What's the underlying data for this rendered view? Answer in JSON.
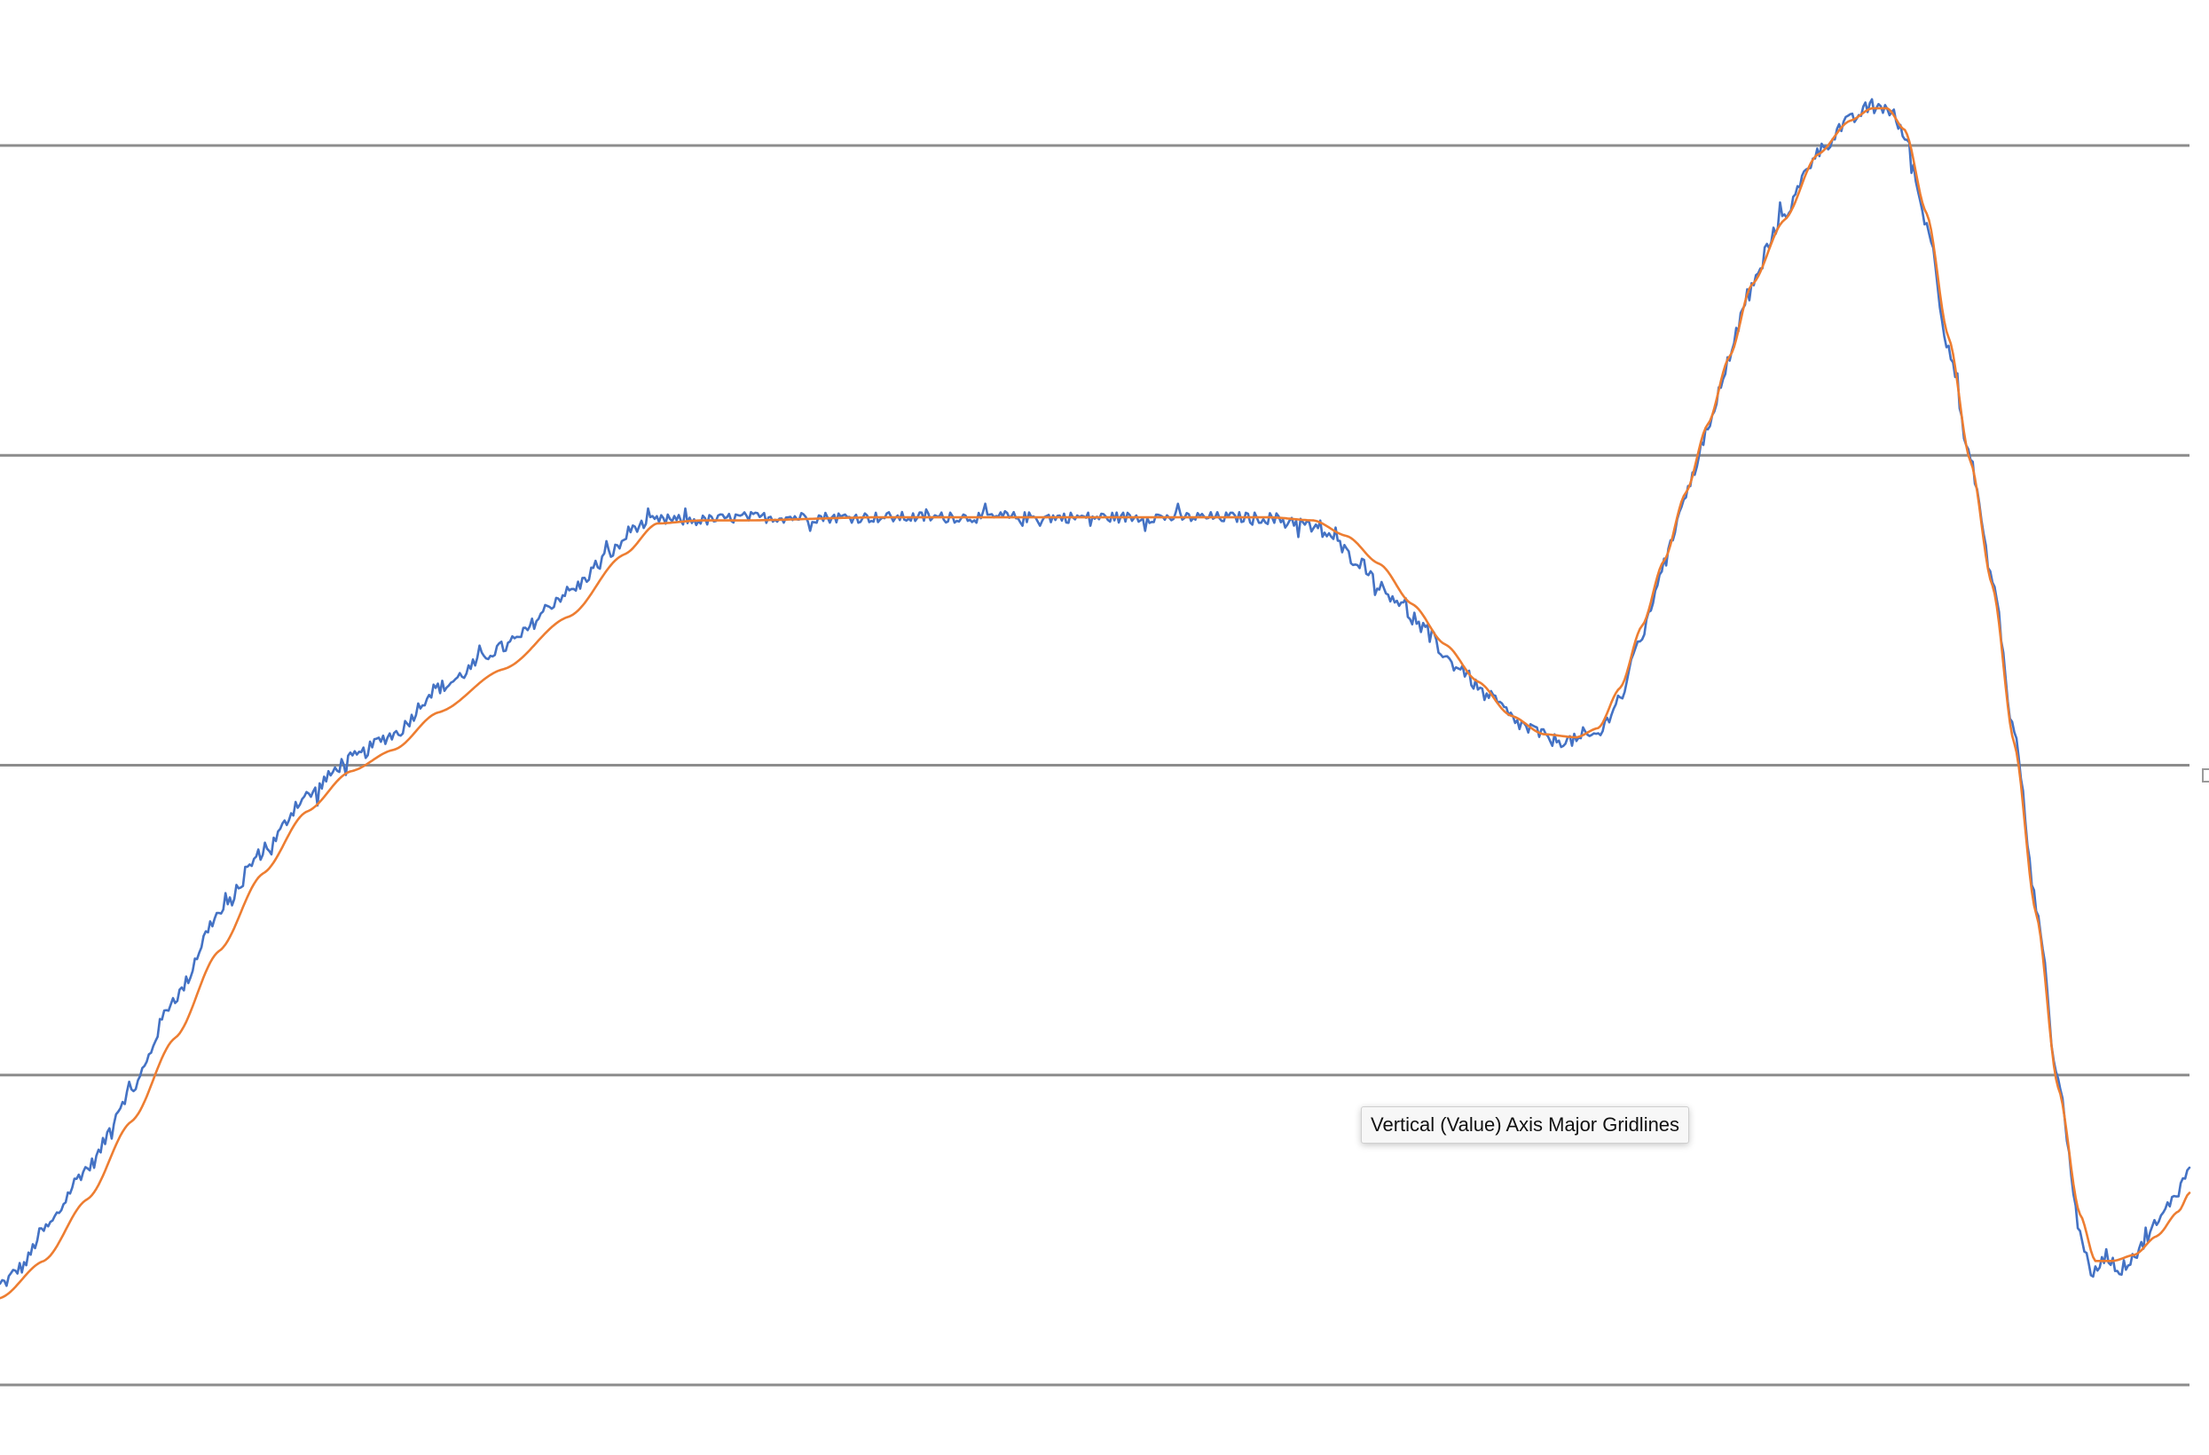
{
  "tooltip": {
    "text": "Vertical (Value) Axis Major Gridlines"
  },
  "colors": {
    "gridline": "#8c8c8c",
    "series_raw": "#4472c4",
    "series_smoothed": "#ed7d31",
    "background": "#ffffff"
  },
  "chart_data": {
    "type": "line",
    "title": "",
    "xlabel": "",
    "ylabel": "",
    "grid": "horizontal major gridlines",
    "legend": "none",
    "ylim": [
      0,
      4
    ],
    "gridlines": [
      0,
      1,
      2,
      3,
      4
    ],
    "x_range": [
      0,
      1000
    ],
    "series": [
      {
        "color": "#4472c4",
        "noisy": true,
        "points": [
          [
            0,
            0.32
          ],
          [
            10,
            0.38
          ],
          [
            20,
            0.5
          ],
          [
            40,
            0.7
          ],
          [
            60,
            0.95
          ],
          [
            80,
            1.25
          ],
          [
            100,
            1.52
          ],
          [
            120,
            1.72
          ],
          [
            140,
            1.9
          ],
          [
            160,
            2.02
          ],
          [
            180,
            2.1
          ],
          [
            200,
            2.25
          ],
          [
            230,
            2.38
          ],
          [
            260,
            2.56
          ],
          [
            280,
            2.69
          ],
          [
            290,
            2.77
          ],
          [
            300,
            2.79
          ],
          [
            320,
            2.79
          ],
          [
            340,
            2.8
          ],
          [
            400,
            2.8
          ],
          [
            500,
            2.8
          ],
          [
            570,
            2.8
          ],
          [
            590,
            2.79
          ],
          [
            605,
            2.75
          ],
          [
            620,
            2.66
          ],
          [
            635,
            2.55
          ],
          [
            650,
            2.44
          ],
          [
            665,
            2.32
          ],
          [
            680,
            2.22
          ],
          [
            695,
            2.13
          ],
          [
            710,
            2.08
          ],
          [
            720,
            2.08
          ],
          [
            730,
            2.1
          ],
          [
            740,
            2.22
          ],
          [
            750,
            2.42
          ],
          [
            760,
            2.65
          ],
          [
            770,
            2.88
          ],
          [
            780,
            3.08
          ],
          [
            790,
            3.32
          ],
          [
            800,
            3.55
          ],
          [
            815,
            3.78
          ],
          [
            830,
            3.98
          ],
          [
            845,
            4.08
          ],
          [
            855,
            4.13
          ],
          [
            862,
            4.12
          ],
          [
            870,
            4.03
          ],
          [
            880,
            3.75
          ],
          [
            890,
            3.35
          ],
          [
            900,
            2.98
          ],
          [
            910,
            2.6
          ],
          [
            920,
            2.1
          ],
          [
            930,
            1.55
          ],
          [
            940,
            0.98
          ],
          [
            950,
            0.5
          ],
          [
            955,
            0.35
          ],
          [
            962,
            0.42
          ],
          [
            968,
            0.37
          ],
          [
            975,
            0.42
          ],
          [
            985,
            0.52
          ],
          [
            995,
            0.63
          ],
          [
            1000,
            0.7
          ]
        ]
      },
      {
        "color": "#ed7d31",
        "noisy": false,
        "points": [
          [
            0,
            0.28
          ],
          [
            20,
            0.4
          ],
          [
            40,
            0.6
          ],
          [
            60,
            0.85
          ],
          [
            80,
            1.12
          ],
          [
            100,
            1.4
          ],
          [
            120,
            1.65
          ],
          [
            140,
            1.85
          ],
          [
            160,
            1.98
          ],
          [
            180,
            2.05
          ],
          [
            200,
            2.17
          ],
          [
            230,
            2.31
          ],
          [
            260,
            2.48
          ],
          [
            285,
            2.68
          ],
          [
            300,
            2.78
          ],
          [
            320,
            2.79
          ],
          [
            340,
            2.79
          ],
          [
            400,
            2.8
          ],
          [
            500,
            2.8
          ],
          [
            580,
            2.8
          ],
          [
            600,
            2.79
          ],
          [
            615,
            2.74
          ],
          [
            630,
            2.65
          ],
          [
            645,
            2.52
          ],
          [
            660,
            2.39
          ],
          [
            675,
            2.27
          ],
          [
            690,
            2.16
          ],
          [
            705,
            2.1
          ],
          [
            720,
            2.09
          ],
          [
            730,
            2.12
          ],
          [
            740,
            2.25
          ],
          [
            750,
            2.45
          ],
          [
            760,
            2.66
          ],
          [
            770,
            2.88
          ],
          [
            780,
            3.1
          ],
          [
            790,
            3.32
          ],
          [
            800,
            3.55
          ],
          [
            815,
            3.76
          ],
          [
            830,
            3.97
          ],
          [
            845,
            4.08
          ],
          [
            855,
            4.12
          ],
          [
            862,
            4.12
          ],
          [
            870,
            4.05
          ],
          [
            880,
            3.78
          ],
          [
            890,
            3.38
          ],
          [
            900,
            2.98
          ],
          [
            910,
            2.58
          ],
          [
            920,
            2.07
          ],
          [
            930,
            1.52
          ],
          [
            940,
            0.96
          ],
          [
            950,
            0.55
          ],
          [
            957,
            0.4
          ],
          [
            965,
            0.4
          ],
          [
            975,
            0.42
          ],
          [
            985,
            0.48
          ],
          [
            995,
            0.56
          ],
          [
            1000,
            0.62
          ]
        ]
      }
    ]
  }
}
